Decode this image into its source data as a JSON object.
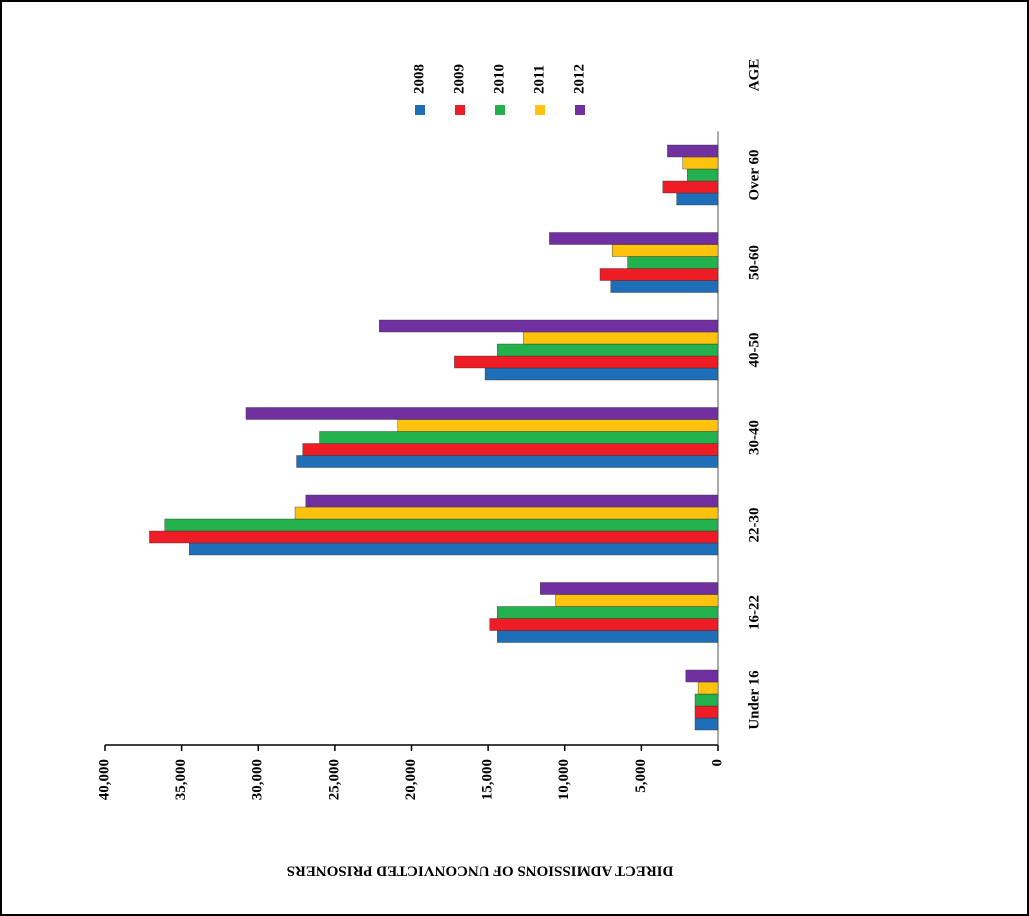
{
  "chart_data": {
    "type": "bar",
    "y_label": "DIRECT ADMISSIONS OF UNCONVICTED PRISONERS",
    "x_label": "AGE",
    "categories": [
      "Under 16",
      "16-22",
      "22-30",
      "30-40",
      "40-50",
      "50-60",
      "Over 60"
    ],
    "series": [
      {
        "name": "2008",
        "color": "#1f6fb8",
        "values": [
          1500,
          14400,
          34500,
          27500,
          15200,
          7000,
          2700
        ]
      },
      {
        "name": "2009",
        "color": "#ee1c24",
        "values": [
          1500,
          14900,
          37100,
          27100,
          17200,
          7700,
          3600
        ]
      },
      {
        "name": "2010",
        "color": "#22b14c",
        "values": [
          1500,
          14400,
          36100,
          26000,
          14400,
          5900,
          2000
        ]
      },
      {
        "name": "2011",
        "color": "#ffc20e",
        "values": [
          1300,
          10600,
          27600,
          20900,
          12700,
          6900,
          2300
        ]
      },
      {
        "name": "2012",
        "color": "#7030a0",
        "values": [
          2100,
          11600,
          26900,
          30800,
          22100,
          11000,
          3300
        ]
      }
    ],
    "ylim": [
      0,
      40000
    ],
    "yticks": [
      0,
      {
        "value": 5000,
        "label": "5,000"
      },
      {
        "value": 10000,
        "label": "10,000"
      },
      {
        "value": 15000,
        "label": "15,000"
      },
      {
        "value": 20000,
        "label": "20,000"
      },
      {
        "value": 25000,
        "label": "25,000"
      },
      {
        "value": 30000,
        "label": "30,000"
      },
      {
        "value": 35000,
        "label": "35,000"
      },
      {
        "value": 40000,
        "label": "40,000"
      }
    ]
  }
}
